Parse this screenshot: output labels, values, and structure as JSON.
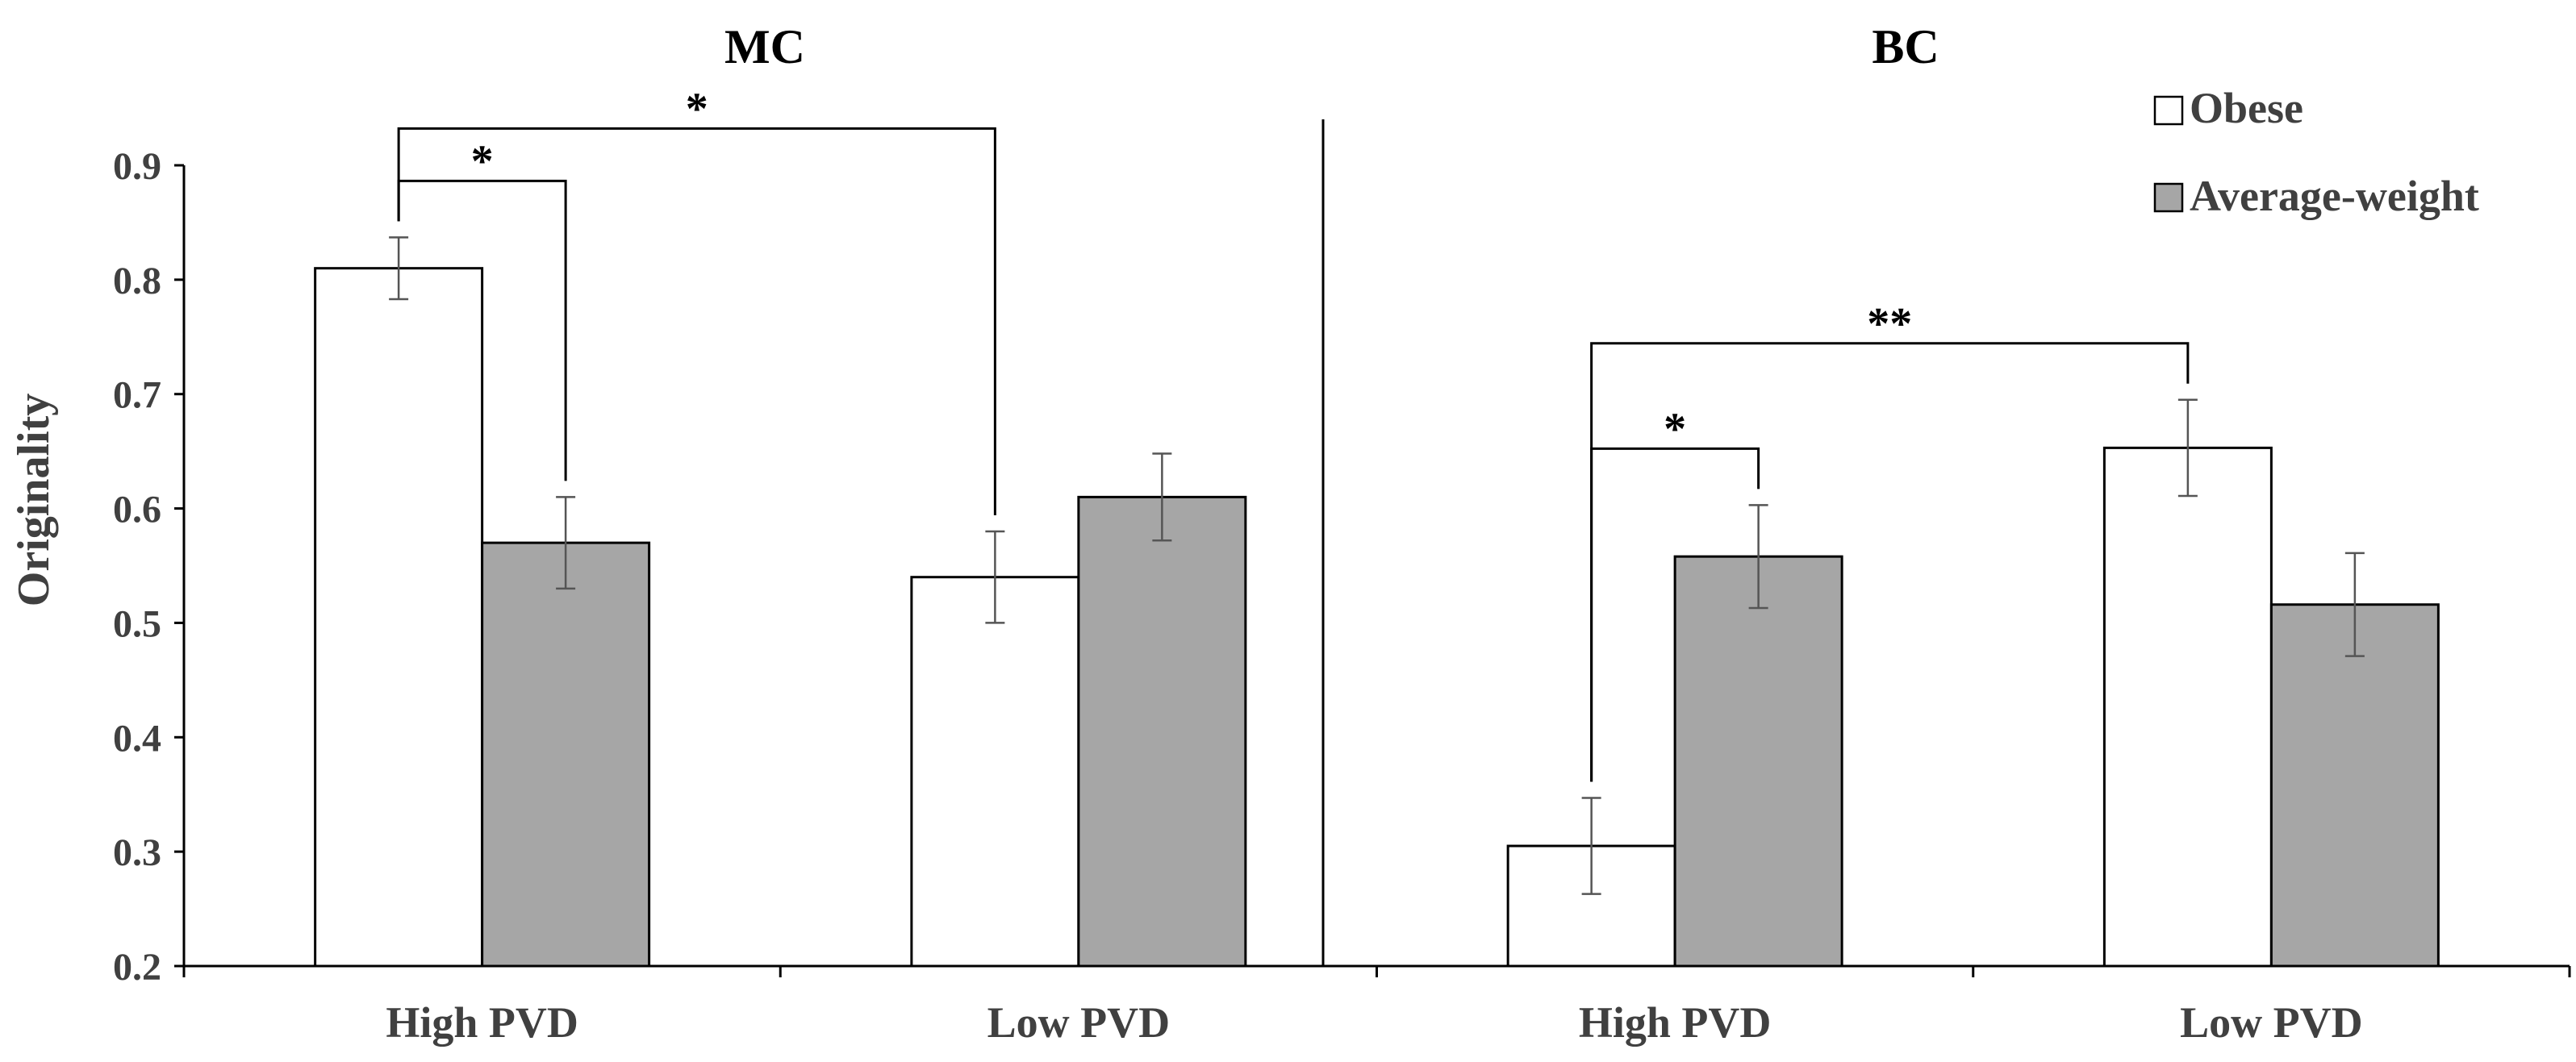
{
  "chart_data": {
    "type": "bar",
    "ylabel": "Originality",
    "ylim": [
      0.2,
      0.9
    ],
    "yticks": [
      "0.2",
      "0.3",
      "0.4",
      "0.5",
      "0.6",
      "0.7",
      "0.8",
      "0.9"
    ],
    "legend": {
      "placement": "top-right",
      "entries": [
        "Obese",
        "Average-weight"
      ]
    },
    "colors": {
      "Obese": "#ffffff",
      "Average-weight": "#a6a6a6",
      "axis": "#000000",
      "text": "#404040"
    },
    "panels": [
      {
        "title": "MC",
        "categories": [
          "High PVD",
          "Low PVD"
        ],
        "series": [
          {
            "name": "Obese",
            "values": [
              0.81,
              0.54
            ],
            "errors": [
              0.027,
              0.04
            ]
          },
          {
            "name": "Average-weight",
            "values": [
              0.57,
              0.61
            ],
            "errors": [
              0.04,
              0.038
            ]
          }
        ],
        "annotations": [
          {
            "label": "*",
            "from": "High PVD / Obese",
            "to": "High PVD / Average-weight"
          },
          {
            "label": "*",
            "from": "High PVD / Obese",
            "to": "Low PVD / Obese"
          }
        ]
      },
      {
        "title": "BC",
        "categories": [
          "High PVD",
          "Low PVD"
        ],
        "series": [
          {
            "name": "Obese",
            "values": [
              0.305,
              0.653
            ],
            "errors": [
              0.042,
              0.042
            ]
          },
          {
            "name": "Average-weight",
            "values": [
              0.558,
              0.516
            ],
            "errors": [
              0.045,
              0.045
            ]
          }
        ],
        "annotations": [
          {
            "label": "*",
            "from": "High PVD / Obese",
            "to": "High PVD / Average-weight"
          },
          {
            "label": "**",
            "from": "High PVD / Obese",
            "to": "Low PVD / Obese"
          }
        ]
      }
    ]
  }
}
